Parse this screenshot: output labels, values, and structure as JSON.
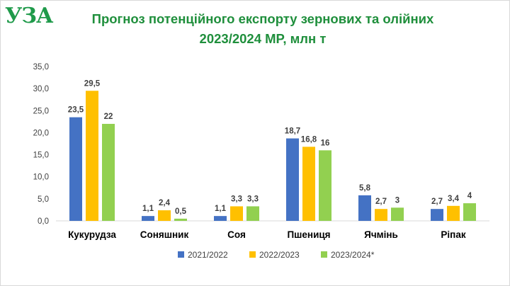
{
  "logo": {
    "text": "УЗА",
    "color": "#1f9a4a"
  },
  "title_line1": "Прогноз потенційного експорту зернових та олійних",
  "title_line2": "2023/2024 МР, млн т",
  "colors": {
    "title": "#1f8f3c",
    "s1": "#4472c4",
    "s2": "#ffc000",
    "s3": "#92d050"
  },
  "chart_data": {
    "type": "bar",
    "title": "Прогноз потенційного експорту зернових та олійних 2023/2024 МР, млн т",
    "categories": [
      "Кукурудза",
      "Соняшник",
      "Соя",
      "Пшениця",
      "Ячмінь",
      "Ріпак"
    ],
    "series": [
      {
        "name": "2021/2022",
        "color": "#4472c4",
        "values": [
          23.5,
          1.1,
          1.1,
          18.7,
          5.8,
          2.7
        ],
        "labels": [
          "23,5",
          "1,1",
          "1,1",
          "18,7",
          "5,8",
          "2,7"
        ]
      },
      {
        "name": "2022/2023",
        "color": "#ffc000",
        "values": [
          29.5,
          2.4,
          3.3,
          16.8,
          2.7,
          3.4
        ],
        "labels": [
          "29,5",
          "2,4",
          "3,3",
          "16,8",
          "2,7",
          "3,4"
        ]
      },
      {
        "name": "2023/2024*",
        "color": "#92d050",
        "values": [
          22,
          0.5,
          3.3,
          16,
          3,
          4
        ],
        "labels": [
          "22",
          "0,5",
          "3,3",
          "16",
          "3",
          "4"
        ]
      }
    ],
    "ylim": [
      0,
      35
    ],
    "yticks": [
      0,
      5,
      10,
      15,
      20,
      25,
      30,
      35
    ],
    "ytick_labels": [
      "0,0",
      "5,0",
      "10,0",
      "15,0",
      "20,0",
      "25,0",
      "30,0",
      "35,0"
    ],
    "grid": false,
    "legend": "bottom"
  }
}
